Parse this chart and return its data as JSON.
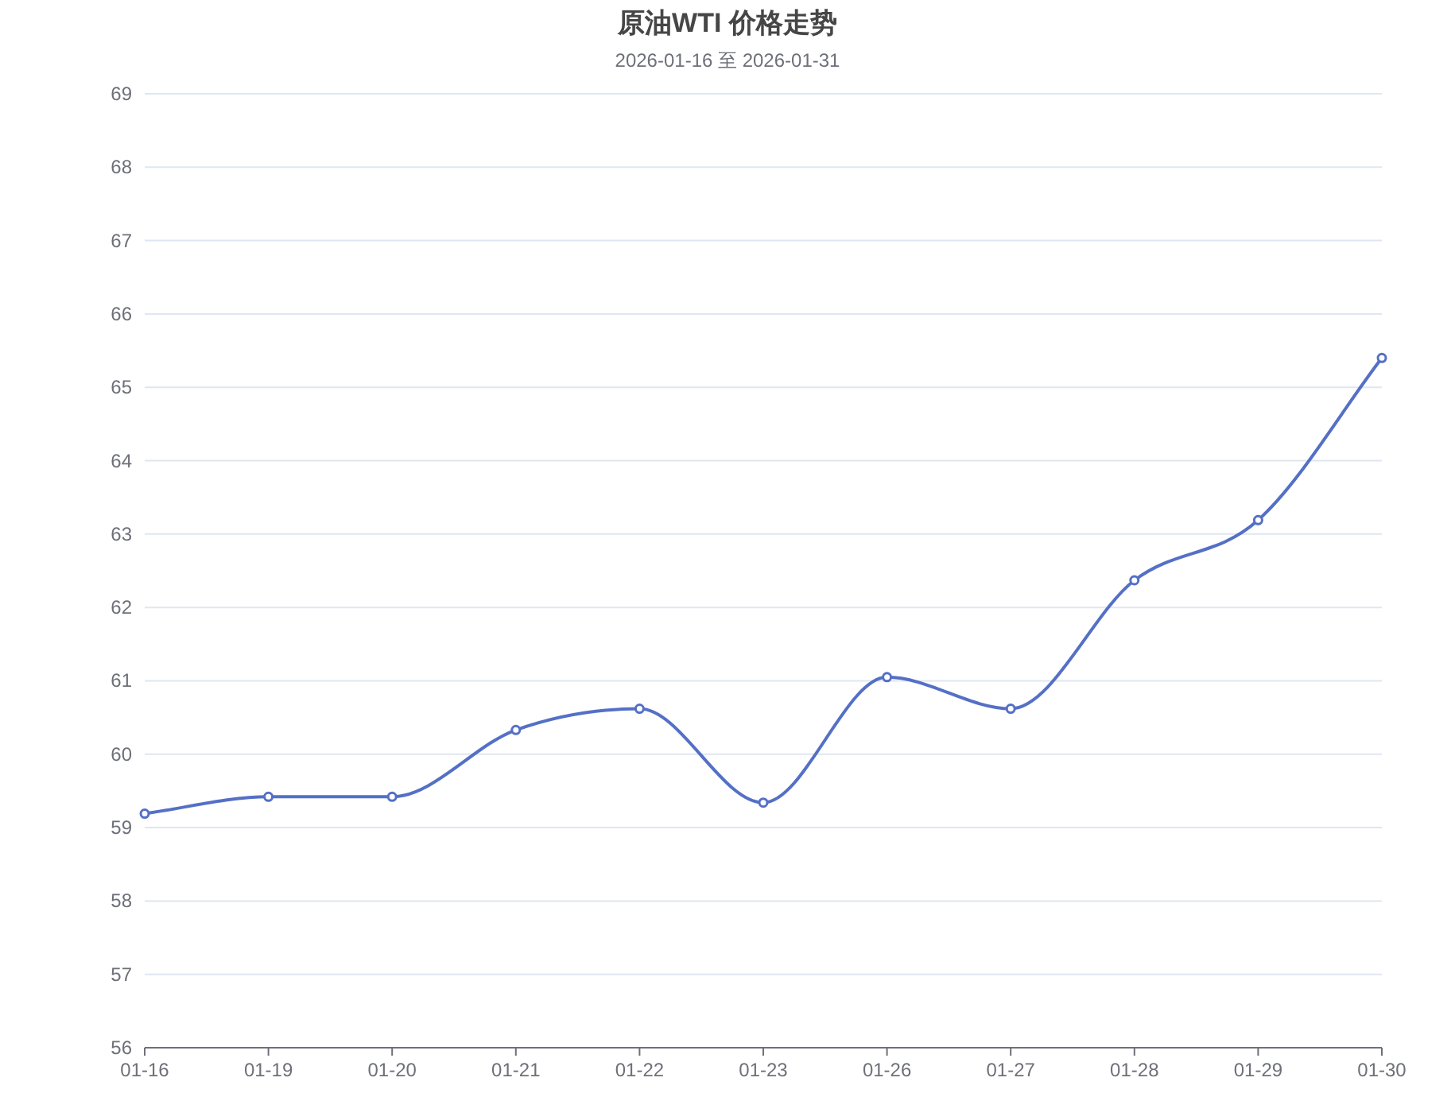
{
  "chart_data": {
    "type": "line",
    "title": "原油WTI 价格走势",
    "subtitle": "2026-01-16 至 2026-01-31",
    "categories": [
      "01-16",
      "01-19",
      "01-20",
      "01-21",
      "01-22",
      "01-23",
      "01-26",
      "01-27",
      "01-28",
      "01-29",
      "01-30"
    ],
    "values": [
      59.19,
      59.42,
      59.42,
      60.33,
      60.62,
      59.34,
      61.05,
      60.62,
      62.37,
      63.19,
      65.4
    ],
    "color": "#5470c6",
    "ylim": [
      56,
      69
    ],
    "yticks": [
      56,
      57,
      58,
      59,
      60,
      61,
      62,
      63,
      64,
      65,
      66,
      67,
      68,
      69
    ],
    "grid": "y",
    "marker": "circle",
    "line_style": "solid"
  }
}
